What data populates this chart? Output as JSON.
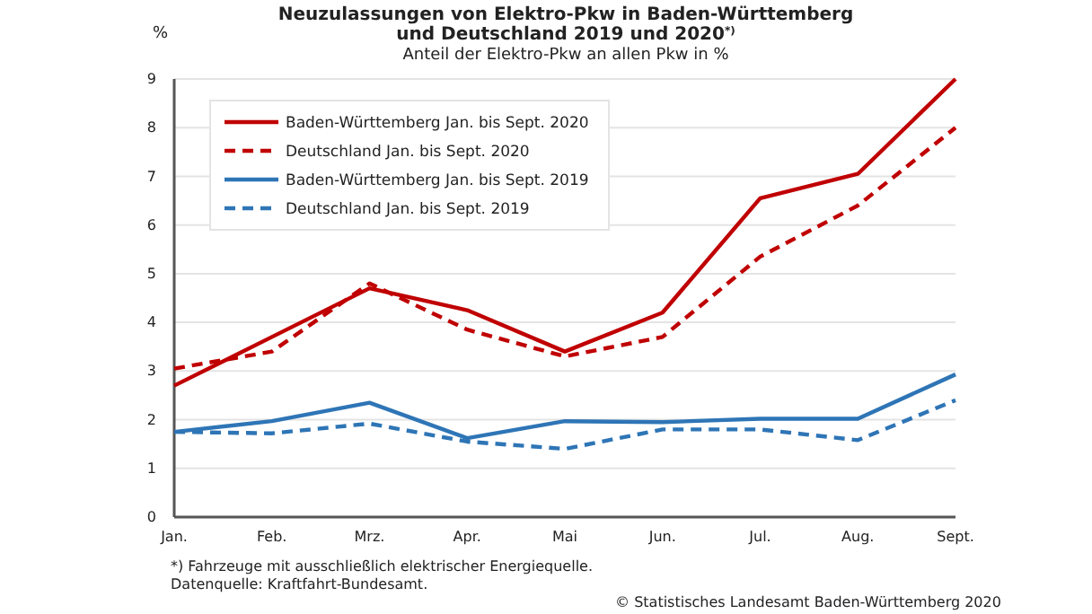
{
  "chart_data": {
    "type": "line",
    "title": "Neuzulassungen von Elektro-Pkw in Baden-Württemberg und Deutschland 2019 und 2020$^{*)}$",
    "subtitle": "Anteil der Elektro-Pkw an allen Pkw in %",
    "ylabel": "%",
    "categories": [
      "Jan.",
      "Feb.",
      "Mrz.",
      "Apr.",
      "Mai",
      "Jun.",
      "Jul.",
      "Aug.",
      "Sept."
    ],
    "series": [
      {
        "name": "Baden-Württemberg Jan. bis Sept. 2020",
        "color": "#c00000",
        "line_style": "solid",
        "values": [
          2.7,
          3.7,
          4.7,
          4.25,
          3.4,
          4.2,
          6.55,
          7.05,
          9.0
        ]
      },
      {
        "name": "Deutschland Jan. bis Sept. 2020",
        "color": "#c00000",
        "line_style": "dashed",
        "values": [
          3.05,
          3.4,
          4.8,
          3.85,
          3.3,
          3.7,
          5.35,
          6.4,
          8.0
        ]
      },
      {
        "name": "Baden-Württemberg Jan. bis Sept. 2019",
        "color": "#2e75b6",
        "line_style": "solid",
        "values": [
          1.75,
          1.97,
          2.35,
          1.62,
          1.97,
          1.95,
          2.02,
          2.02,
          2.93
        ]
      },
      {
        "name": "Deutschland Jan. bis Sept. 2019",
        "color": "#2e75b6",
        "line_style": "dashed",
        "values": [
          1.75,
          1.72,
          1.92,
          1.55,
          1.4,
          1.8,
          1.8,
          1.58,
          2.4
        ]
      }
    ],
    "ylim": [
      0,
      9
    ],
    "yticks": [
      0,
      1,
      2,
      3,
      4,
      5,
      6,
      7,
      8,
      9
    ],
    "grid": "y",
    "legend": "top left",
    "marker": "none",
    "annotations": [
      "*) Fahrzeuge mit ausschließlich elektrischer Energiequelle.",
      "Datenquelle: Kraftfahrt-Bundesamt.",
      "© Statistisches Landesamt Baden-Württemberg 2020"
    ]
  }
}
